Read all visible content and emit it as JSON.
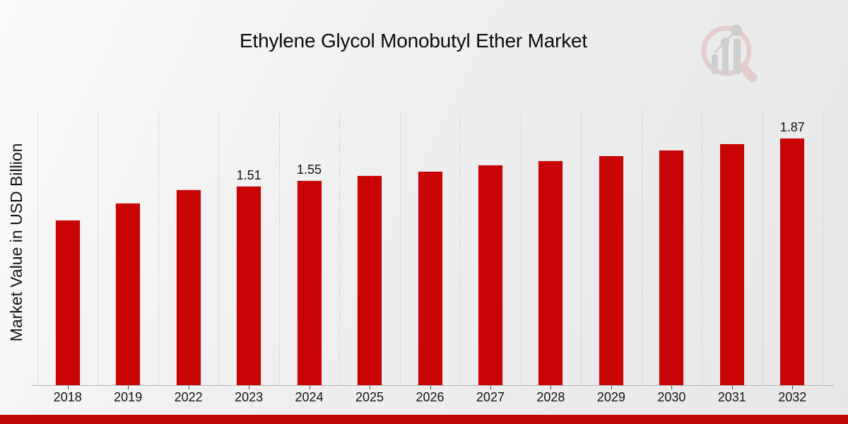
{
  "header": {
    "title": "Ethylene Glycol Monobutyl Ether Market"
  },
  "icons": {
    "logo": "magnifier-bar-chart-logo-icon"
  },
  "footer": {
    "strip_color": "#c00505"
  },
  "chart_data": {
    "type": "bar",
    "title": "Ethylene Glycol Monobutyl Ether Market",
    "ylabel": "Market Value in USD Billion",
    "xlabel": "",
    "categories": [
      "2018",
      "2019",
      "2022",
      "2023",
      "2024",
      "2025",
      "2026",
      "2027",
      "2028",
      "2029",
      "2030",
      "2031",
      "2032"
    ],
    "values": [
      1.25,
      1.38,
      1.48,
      1.51,
      1.55,
      1.59,
      1.62,
      1.67,
      1.7,
      1.74,
      1.78,
      1.83,
      1.87
    ],
    "data_labels": [
      "",
      "",
      "",
      "1.51",
      "1.55",
      "",
      "",
      "",
      "",
      "",
      "",
      "",
      "1.87"
    ],
    "bar_color": "#c80404",
    "grid": {
      "vertical": true,
      "style": "dotted",
      "color": "#c6c6c6"
    },
    "axis_color": "#b3b3b3",
    "tick_color": "#4a4a4a",
    "label_color": "#151515",
    "ylim": [
      0,
      2.07
    ],
    "legend": "none"
  }
}
